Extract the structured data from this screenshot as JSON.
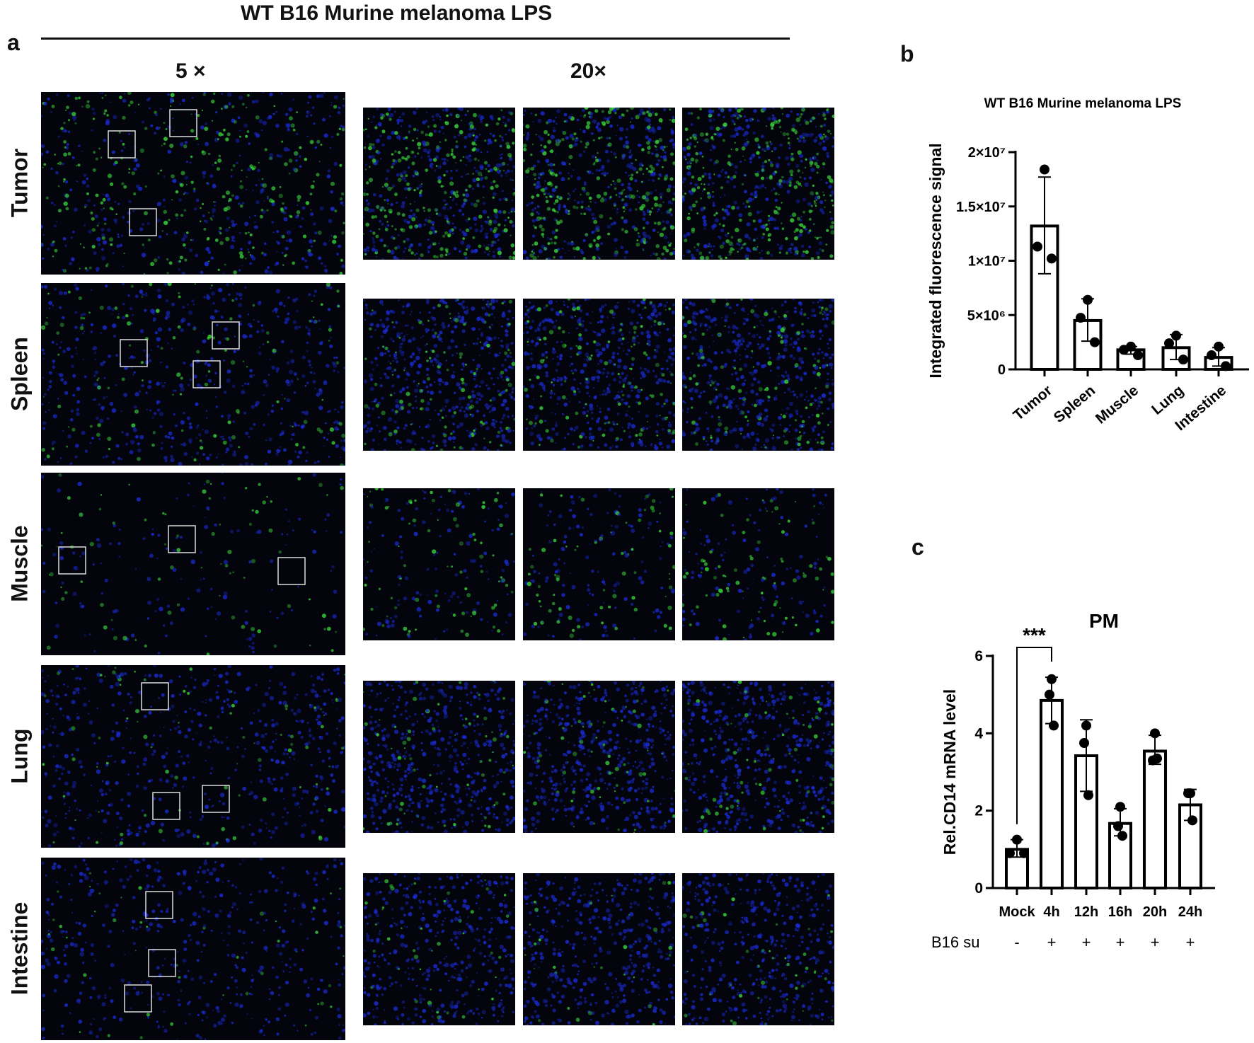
{
  "panel_a": {
    "label": "a",
    "title": "WT B16 Murine melanoma LPS",
    "col_headers": [
      "5 ×",
      "20×"
    ],
    "rows": [
      "Tumor",
      "Spleen",
      "Muscle",
      "Lung",
      "Intestine"
    ],
    "colors": {
      "nuclei": "#1a2bd0",
      "signal": "#38d23a"
    }
  },
  "chart_data": [
    {
      "panel_label": "b",
      "type": "bar",
      "title": "WT B16 Murine melanoma LPS",
      "xlabel": "",
      "ylabel": "Integrated fluorescence signal",
      "categories": [
        "Tumor",
        "Spleen",
        "Muscle",
        "Lung",
        "Intestine"
      ],
      "values": [
        13200000,
        4500000,
        1800000,
        2000000,
        1100000
      ],
      "error_upper": [
        17700000,
        6500000,
        2100000,
        3200000,
        2000000
      ],
      "error_lower": [
        8800000,
        2600000,
        1400000,
        900000,
        300000
      ],
      "points": [
        [
          18400000,
          11300000,
          10200000
        ],
        [
          6400000,
          4750000,
          2500000
        ],
        [
          2100000,
          1800000,
          1300000
        ],
        [
          3100000,
          2400000,
          900000
        ],
        [
          2100000,
          1300000,
          300000
        ]
      ],
      "ylim": [
        0,
        20000000
      ],
      "yticks": [
        0,
        5000000,
        10000000,
        15000000,
        20000000
      ],
      "ytick_labels": [
        "0",
        "5×10⁶",
        "1×10⁷",
        "1.5×10⁷",
        "2×10⁷"
      ],
      "grid": false
    },
    {
      "panel_label": "c",
      "type": "bar",
      "title": "PM",
      "xlabel": "",
      "ylabel": "Rel.CD14 mRNA level",
      "categories": [
        "Mock",
        "4h",
        "12h",
        "16h",
        "20h",
        "24h"
      ],
      "values": [
        1.0,
        4.85,
        3.42,
        1.67,
        3.54,
        2.15
      ],
      "error_upper": [
        1.25,
        5.45,
        4.35,
        2.05,
        3.95,
        2.55
      ],
      "error_lower": [
        0.8,
        4.25,
        2.5,
        1.35,
        3.2,
        1.75
      ],
      "points": [
        [
          1.25,
          0.9,
          0.9
        ],
        [
          5.4,
          5.0,
          4.2
        ],
        [
          4.2,
          3.75,
          2.4
        ],
        [
          2.1,
          1.6,
          1.35
        ],
        [
          4.0,
          3.3,
          3.35
        ],
        [
          2.45,
          2.45,
          1.75
        ]
      ],
      "ylim": [
        0,
        6
      ],
      "yticks": [
        0,
        2,
        4,
        6
      ],
      "ytick_labels": [
        "0",
        "2",
        "4",
        "6"
      ],
      "treatment_label": "B16 su",
      "treatment": [
        "-",
        "+",
        "+",
        "+",
        "+",
        "+"
      ],
      "significance": {
        "from": "Mock",
        "to": "4h",
        "label": "***"
      },
      "grid": false
    }
  ]
}
